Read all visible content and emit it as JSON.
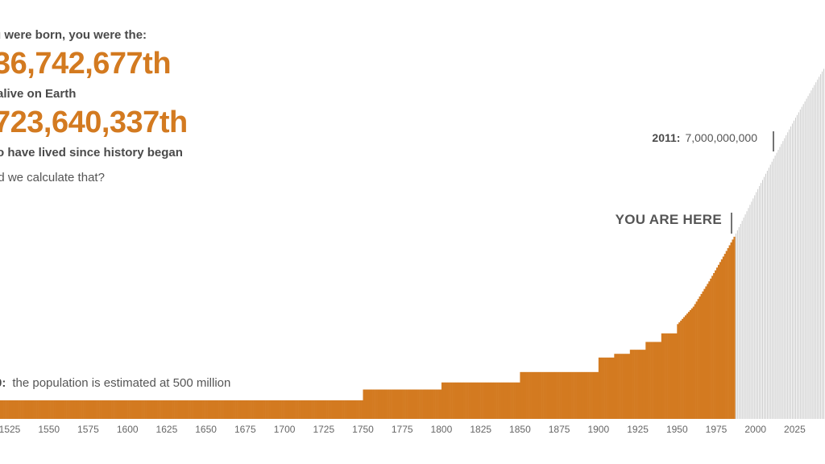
{
  "stats": {
    "born_intro": "u were born, you were the:",
    "alive_number": "36,742,677th",
    "alive_label": "alive on Earth",
    "lived_number": "723,640,337th",
    "lived_label": "o have lived since history began",
    "calc_link": "id we calculate that?"
  },
  "annotations": {
    "you_are_here": "YOU ARE HERE",
    "m2011_year": "2011:",
    "m2011_value": "7,000,000,000",
    "m1500_year": "0:",
    "m1500_text": "the population is estimated at 500 million"
  },
  "colors": {
    "past_bar": "#d37a20",
    "future_bar": "#c9c9c9",
    "tick_text": "#666666",
    "marker": "#444444"
  },
  "chart_data": {
    "type": "bar",
    "x_tick_labels": [
      "1525",
      "1550",
      "1575",
      "1600",
      "1625",
      "1650",
      "1675",
      "1700",
      "1725",
      "1750",
      "1775",
      "1800",
      "1825",
      "1850",
      "1875",
      "1900",
      "1925",
      "1950",
      "1975",
      "2000",
      "2025"
    ],
    "x_range": [
      1504,
      2047
    ],
    "y_range": [
      0,
      10400000000
    ],
    "y_unit": "people",
    "grid": false,
    "legend": "none",
    "you_are_here_year": 1986,
    "milestone_2011": {
      "year": 2011,
      "value": 7000000000
    },
    "series": [
      {
        "segment": "past",
        "points": [
          {
            "year": 1500,
            "value": 500000000
          },
          {
            "year": 1750,
            "value": 790000000
          },
          {
            "year": 1800,
            "value": 980000000
          },
          {
            "year": 1850,
            "value": 1260000000
          },
          {
            "year": 1900,
            "value": 1650000000
          },
          {
            "year": 1910,
            "value": 1750000000
          },
          {
            "year": 1920,
            "value": 1860000000
          },
          {
            "year": 1930,
            "value": 2070000000
          },
          {
            "year": 1940,
            "value": 2300000000
          },
          {
            "year": 1950,
            "value": 2550000000
          },
          {
            "year": 1960,
            "value": 3020000000
          },
          {
            "year": 1970,
            "value": 3700000000
          },
          {
            "year": 1980,
            "value": 4440000000
          },
          {
            "year": 1986,
            "value": 4900000000
          }
        ]
      },
      {
        "segment": "future",
        "points": [
          {
            "year": 1986,
            "value": 4900000000
          },
          {
            "year": 2000,
            "value": 6100000000
          },
          {
            "year": 2011,
            "value": 7000000000
          },
          {
            "year": 2025,
            "value": 8100000000
          },
          {
            "year": 2040,
            "value": 9200000000
          },
          {
            "year": 2047,
            "value": 9700000000
          }
        ]
      }
    ]
  }
}
